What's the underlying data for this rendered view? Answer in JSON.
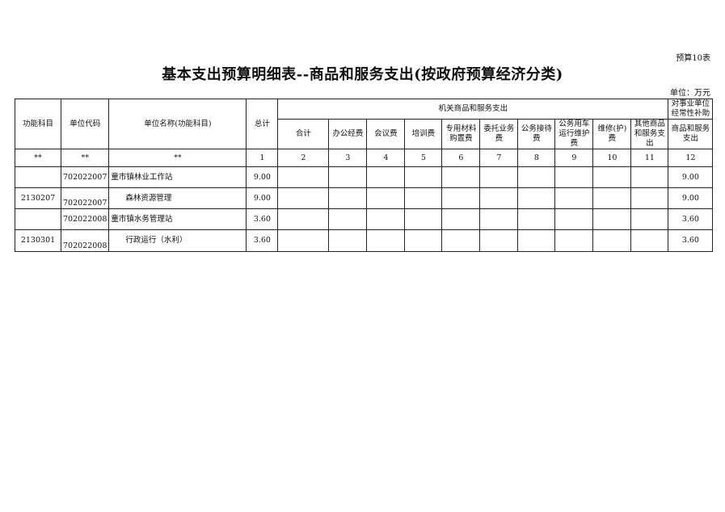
{
  "form_no": "预算10表",
  "title": "基本支出预算明细表--商品和服务支出(按政府预算经济分类)",
  "unit": "单位：万元",
  "headers": {
    "func": "功能科目",
    "code": "单位代码",
    "name": "单位名称(功能科目)",
    "total": "总计",
    "group1": "机关商品和服务支出",
    "group2": "对事业单位经常性补助",
    "sub": [
      "合计",
      "办公经费",
      "会议费",
      "培训费",
      "专用材料购置费",
      "委托业务费",
      "公务接待费",
      "公务用车运行维护费",
      "维修(护)费",
      "其他商品和服务支出",
      "商品和服务支出"
    ],
    "index": [
      "**",
      "**",
      "**",
      "1",
      "2",
      "3",
      "4",
      "5",
      "6",
      "7",
      "8",
      "9",
      "10",
      "11",
      "12"
    ]
  },
  "rows": [
    {
      "func": "",
      "code": "702022007",
      "name": "童市镇林业工作站",
      "total": "9.00",
      "c12": "9.00"
    },
    {
      "func": "2130207",
      "code": "702022007",
      "name": "森林资源管理",
      "total": "9.00",
      "c12": "9.00"
    },
    {
      "func": "",
      "code": "702022008",
      "name": "童市镇水务管理站",
      "total": "3.60",
      "c12": "3.60"
    },
    {
      "func": "2130301",
      "code": "702022008",
      "name": "行政运行（水利）",
      "total": "3.60",
      "c12": "3.60"
    }
  ]
}
